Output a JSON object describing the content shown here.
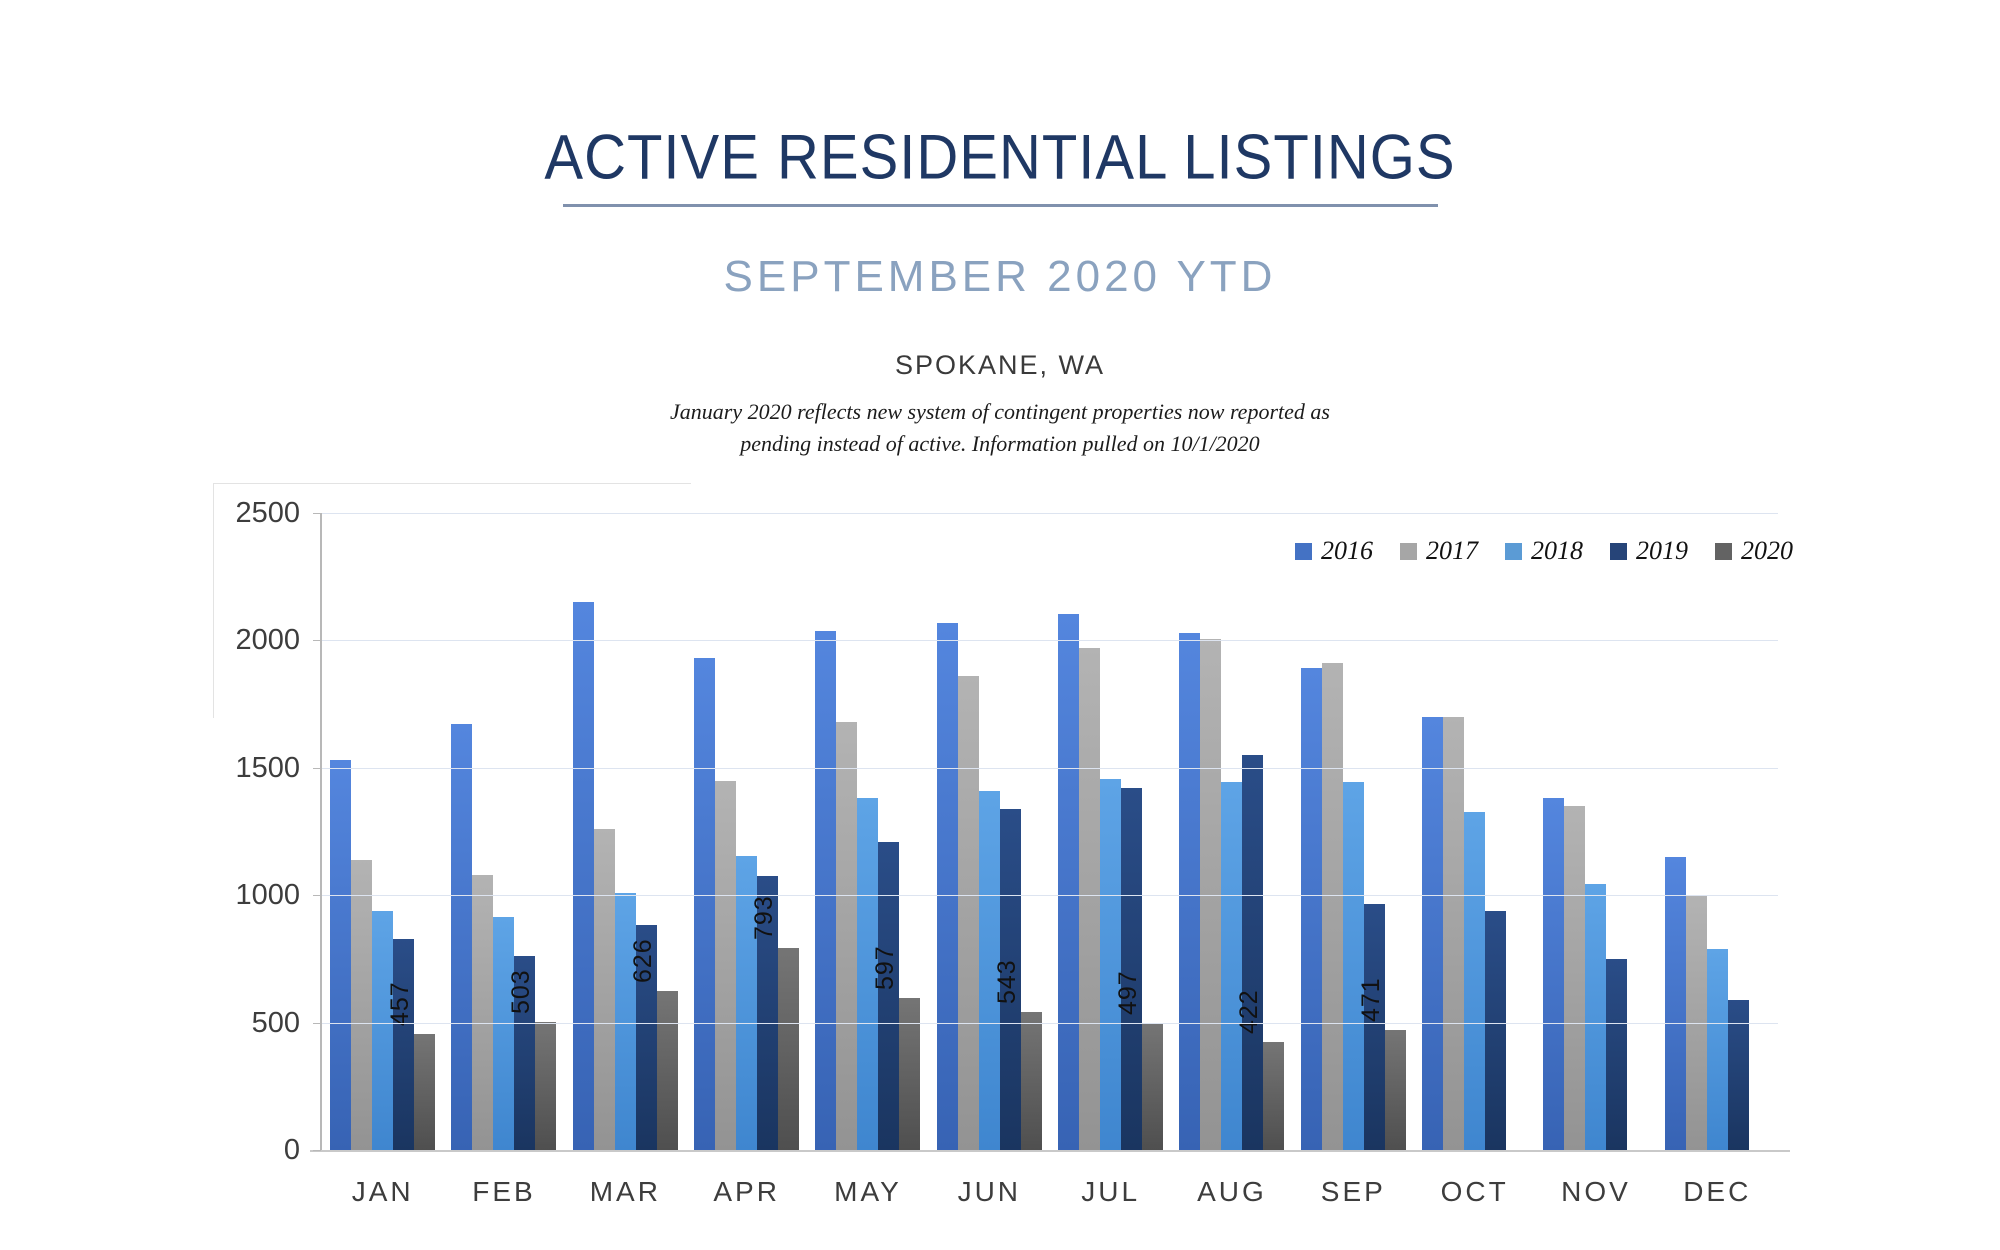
{
  "header": {
    "title": "ACTIVE RESIDENTIAL LISTINGS",
    "subtitle": "SEPTEMBER 2020 YTD",
    "location": "SPOKANE, WA",
    "note_line1": "January 2020 reflects new system of contingent properties now reported as",
    "note_line2": "pending instead of active.  Information pulled on 10/1/2020"
  },
  "chart_data": {
    "type": "bar",
    "title": "Active Residential Listings - September 2020 YTD - Spokane, WA",
    "categories": [
      "JAN",
      "FEB",
      "MAR",
      "APR",
      "MAY",
      "JUN",
      "JUL",
      "AUG",
      "SEP",
      "OCT",
      "NOV",
      "DEC"
    ],
    "series": [
      {
        "name": "2016",
        "color": "#4472C4",
        "gradient_top": "#5486de",
        "gradient_bottom": "#3763b4",
        "values": [
          1530,
          1670,
          2150,
          1930,
          2035,
          2070,
          2105,
          2030,
          1890,
          1700,
          1380,
          1150
        ]
      },
      {
        "name": "2017",
        "color": "#A6A6A6",
        "gradient_top": "#b3b3b3",
        "gradient_bottom": "#939393",
        "values": [
          1140,
          1080,
          1260,
          1450,
          1680,
          1860,
          1970,
          2005,
          1910,
          1700,
          1350,
          1000
        ]
      },
      {
        "name": "2018",
        "color": "#5B9BD5",
        "gradient_top": "#5ea4e6",
        "gradient_bottom": "#3f86cf",
        "values": [
          940,
          915,
          1010,
          1155,
          1380,
          1410,
          1455,
          1445,
          1445,
          1325,
          1045,
          790
        ]
      },
      {
        "name": "2019",
        "color": "#264478",
        "gradient_top": "#2a4d88",
        "gradient_bottom": "#1a3560",
        "values": [
          830,
          760,
          885,
          1075,
          1210,
          1340,
          1420,
          1550,
          965,
          940,
          750,
          590
        ]
      },
      {
        "name": "2020",
        "color": "#636363",
        "gradient_top": "#757575",
        "gradient_bottom": "#4f4f4f",
        "values": [
          457,
          503,
          626,
          793,
          597,
          543,
          497,
          422,
          471,
          null,
          null,
          null
        ],
        "show_data_labels": true
      }
    ],
    "ylim": [
      0,
      2500
    ],
    "yticks": [
      0,
      500,
      1000,
      1500,
      2000,
      2500
    ],
    "grid": true,
    "legend_position": "top-right",
    "data_label_rotation": -90
  }
}
